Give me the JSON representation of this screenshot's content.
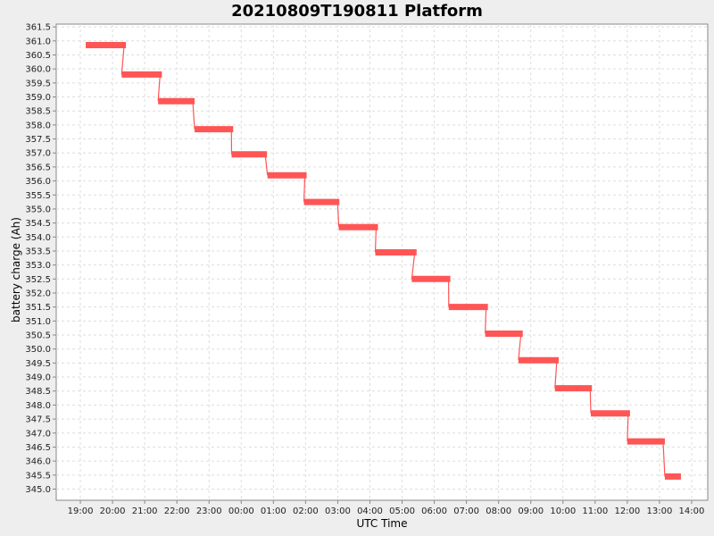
{
  "chart_data": {
    "type": "line",
    "title": "20210809T190811 Platform",
    "xlabel": "UTC Time",
    "ylabel": "battery charge (Ah)",
    "x_ticks": [
      "19:00",
      "20:00",
      "21:00",
      "22:00",
      "23:00",
      "00:00",
      "01:00",
      "02:00",
      "03:00",
      "04:00",
      "05:00",
      "06:00",
      "07:00",
      "08:00",
      "09:00",
      "10:00",
      "11:00",
      "12:00",
      "13:00",
      "14:00"
    ],
    "x_range_hours": [
      18.25,
      14.5
    ],
    "ylim": [
      344.6,
      361.6
    ],
    "y_ticks": [
      "345.0",
      "345.5",
      "346.0",
      "346.5",
      "347.0",
      "347.5",
      "348.0",
      "348.5",
      "349.0",
      "349.5",
      "350.0",
      "350.5",
      "351.0",
      "351.5",
      "352.0",
      "352.5",
      "353.0",
      "353.5",
      "354.0",
      "354.5",
      "355.0",
      "355.5",
      "356.0",
      "356.5",
      "357.0",
      "357.5",
      "358.0",
      "358.5",
      "359.0",
      "359.5",
      "360.0",
      "360.5",
      "361.0",
      "361.5"
    ],
    "grid": true,
    "series": [
      {
        "color": "#ff5555",
        "segments": [
          {
            "start": "19:10",
            "end": "20:25",
            "value": 360.85
          },
          {
            "start": "20:17",
            "end": "21:32",
            "value": 359.8
          },
          {
            "start": "21:25",
            "end": "22:33",
            "value": 358.85
          },
          {
            "start": "22:33",
            "end": "23:45",
            "value": 357.85
          },
          {
            "start": "23:42",
            "end": "00:48",
            "value": 356.95
          },
          {
            "start": "00:49",
            "end": "02:02",
            "value": 356.2
          },
          {
            "start": "01:57",
            "end": "03:03",
            "value": 355.25
          },
          {
            "start": "03:02",
            "end": "04:15",
            "value": 354.35
          },
          {
            "start": "04:10",
            "end": "05:27",
            "value": 353.45
          },
          {
            "start": "05:18",
            "end": "06:30",
            "value": 352.5
          },
          {
            "start": "06:27",
            "end": "07:40",
            "value": 351.5
          },
          {
            "start": "07:35",
            "end": "08:45",
            "value": 350.55
          },
          {
            "start": "08:37",
            "end": "09:52",
            "value": 349.6
          },
          {
            "start": "09:45",
            "end": "10:54",
            "value": 348.6
          },
          {
            "start": "10:52",
            "end": "12:05",
            "value": 347.7
          },
          {
            "start": "12:00",
            "end": "13:10",
            "value": 346.7
          },
          {
            "start": "13:10",
            "end": "13:40",
            "value": 345.45
          }
        ]
      }
    ]
  }
}
